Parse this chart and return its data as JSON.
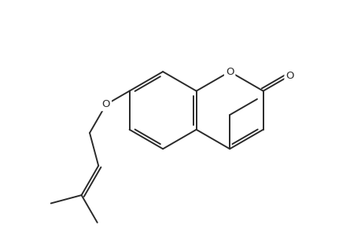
{
  "bg_color": "#ffffff",
  "line_color": "#2a2a2a",
  "line_width": 1.4,
  "figsize": [
    4.6,
    3.0
  ],
  "dpi": 100,
  "xlim": [
    0,
    9.2
  ],
  "ylim": [
    0,
    6.0
  ]
}
